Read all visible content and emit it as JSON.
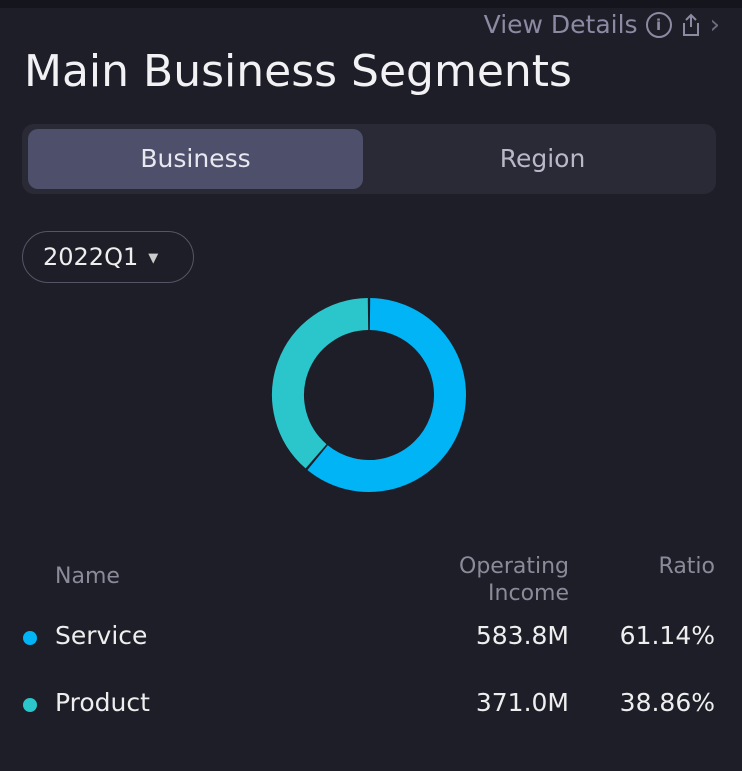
{
  "header": {
    "title": "Main Business Segments",
    "view_details": "View Details",
    "info_icon": "i"
  },
  "tabs": [
    {
      "label": "Business",
      "active": true
    },
    {
      "label": "Region",
      "active": false
    }
  ],
  "period": {
    "selected": "2022Q1"
  },
  "colors": {
    "service": "#00b4f5",
    "product": "#2bc6cc"
  },
  "table": {
    "headers": {
      "name": "Name",
      "income_line1": "Operating",
      "income_line2": "Income",
      "ratio": "Ratio"
    },
    "rows": [
      {
        "name": "Service",
        "income": "583.8M",
        "ratio": "61.14%",
        "share": 61.14
      },
      {
        "name": "Product",
        "income": "371.0M",
        "ratio": "38.86%",
        "share": 38.86
      }
    ]
  }
}
